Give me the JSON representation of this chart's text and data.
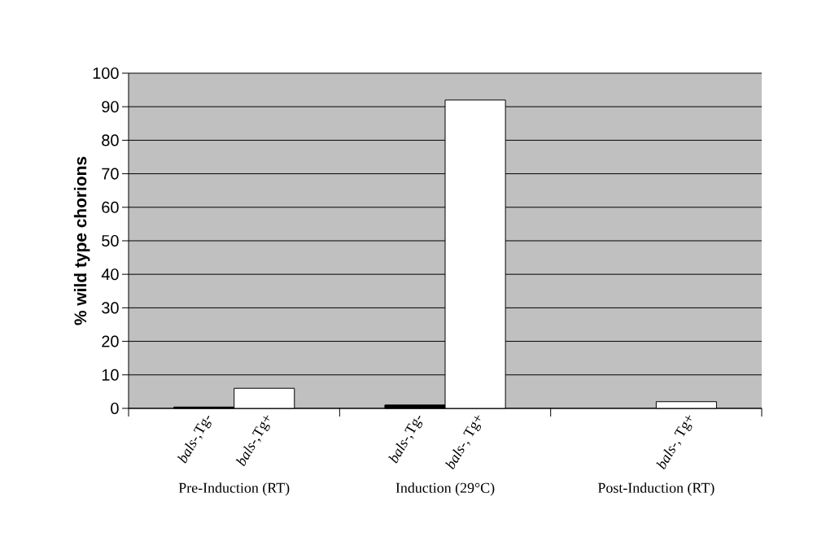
{
  "chart_data": {
    "type": "bar",
    "ylabel": "% wild type chorions",
    "categories": [
      "*bals*-,Tg-",
      "*bals*-,Tg+",
      "*bals*-,Tg-",
      "*bals*-, Tg+",
      null,
      "*bals*-, Tg+"
    ],
    "values": [
      0.4,
      6,
      1,
      92,
      null,
      2
    ],
    "colors": [
      "#000000",
      "#ffffff",
      "#000000",
      "#ffffff",
      "#000000",
      "#ffffff"
    ],
    "ylim": [
      0,
      100
    ],
    "yticks": [
      0,
      10,
      20,
      30,
      40,
      50,
      60,
      70,
      80,
      90,
      100
    ],
    "grid": "y",
    "annotations": [
      "Pre-Induction (RT)",
      "Induction (29°C)",
      "Post-Induction (RT)"
    ]
  }
}
